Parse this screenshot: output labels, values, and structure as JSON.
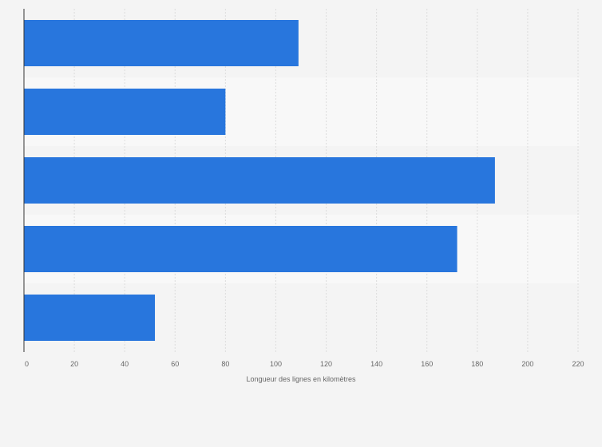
{
  "chart_data": {
    "type": "bar",
    "orientation": "horizontal",
    "categories": [
      "",
      "",
      "",
      "",
      ""
    ],
    "values": [
      109,
      80,
      187,
      172,
      52
    ],
    "xlabel": "Longueur des lignes en kilomètres",
    "ylabel": "",
    "xlim": [
      0,
      220
    ],
    "xticks": [
      0,
      20,
      40,
      60,
      80,
      100,
      120,
      140,
      160,
      180,
      200,
      220
    ],
    "grid": "vertical",
    "legend": "none",
    "bar_color": "#2876dd",
    "band_colors": [
      "#f4f4f4",
      "#f8f8f8"
    ],
    "gridline_color": "#dddddd",
    "axis_color": "#333333",
    "text_color": "#666666"
  }
}
